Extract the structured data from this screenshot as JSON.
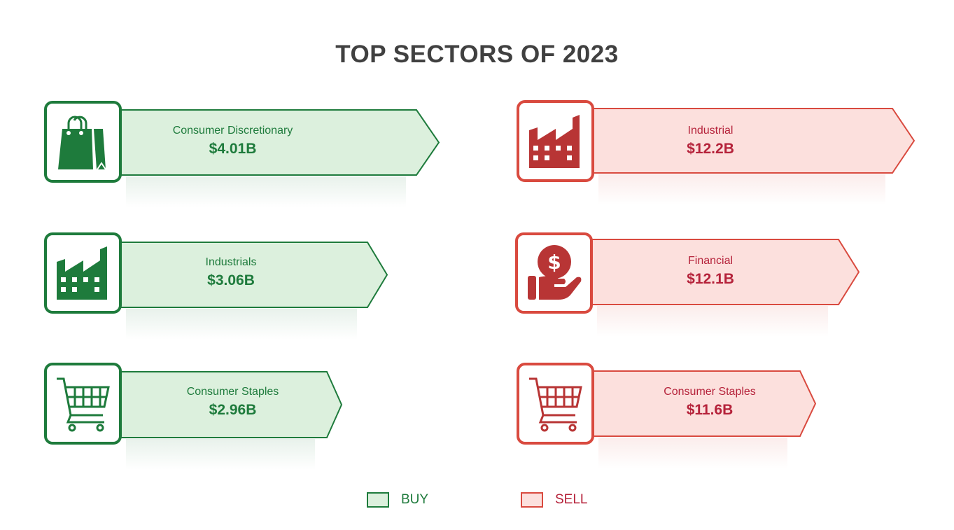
{
  "title": "TOP SECTORS OF 2023",
  "buy": [
    {
      "sector": "Consumer Discretionary",
      "value": "$4.01B",
      "icon": "shopping-bag-icon"
    },
    {
      "sector": "Industrials",
      "value": "$3.06B",
      "icon": "factory-icon"
    },
    {
      "sector": "Consumer Staples",
      "value": "$2.96B",
      "icon": "shopping-cart-icon"
    }
  ],
  "sell": [
    {
      "sector": "Industrial",
      "value": "$12.2B",
      "icon": "factory-icon"
    },
    {
      "sector": "Financial",
      "value": "$12.1B",
      "icon": "hand-coin-icon"
    },
    {
      "sector": "Consumer Staples",
      "value": "$11.6B",
      "icon": "shopping-cart-icon"
    }
  ],
  "legend": {
    "buy": "BUY",
    "sell": "SELL"
  },
  "colors": {
    "buy_stroke": "#1e7b3c",
    "buy_fill": "#dcf0dd",
    "sell_stroke": "#d94a3f",
    "sell_fill": "#fce0dd",
    "sell_text": "#b5223a"
  }
}
